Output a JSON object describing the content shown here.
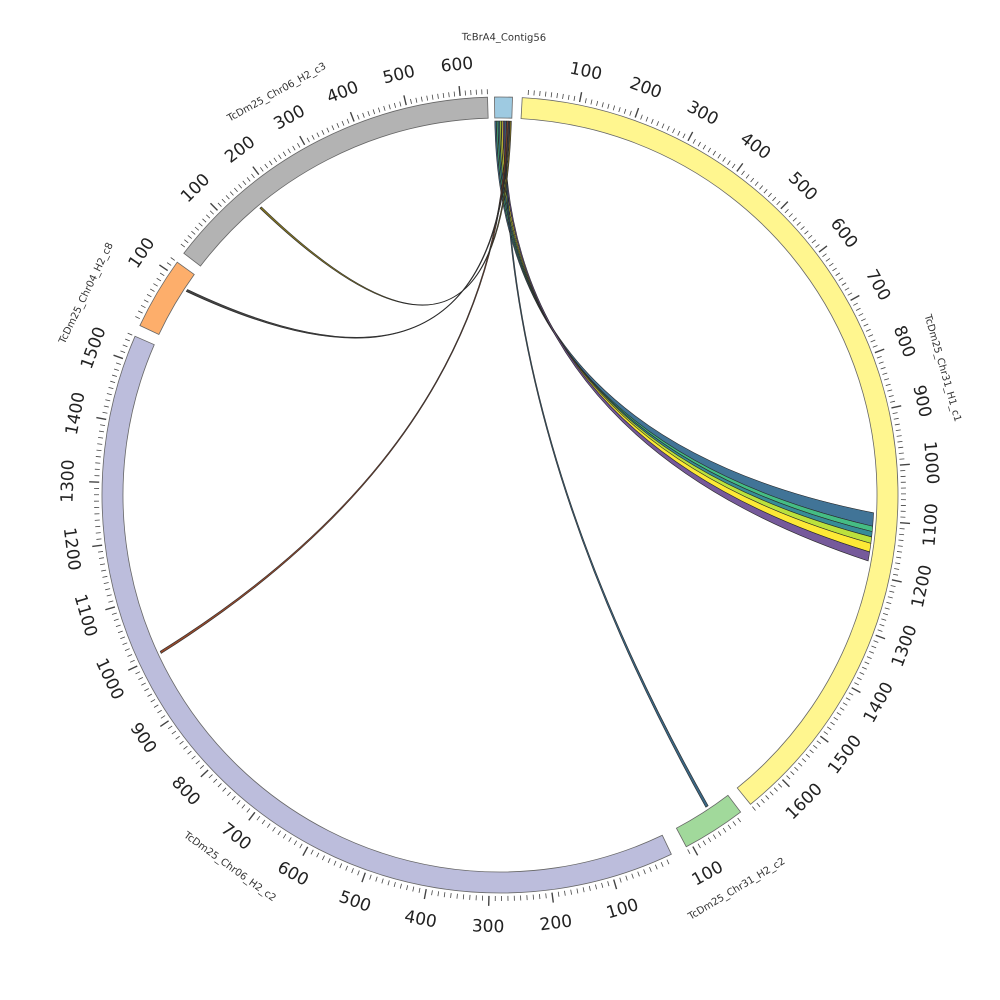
{
  "chart_data": {
    "type": "chord",
    "segments": [
      {
        "name": "TcBrA4_Contig56",
        "length": 15,
        "color": "#9ecae1",
        "tick_labels": []
      },
      {
        "name": "TcDm25_Chr31_H1_c1",
        "length": 1670,
        "color": "#fff68f",
        "tick_labels": [
          "100",
          "200",
          "300",
          "400",
          "500",
          "600",
          "700",
          "800",
          "900",
          "1000",
          "1100",
          "1200",
          "1300",
          "1400",
          "1500",
          "1600"
        ]
      },
      {
        "name": "TcDm25_Chr31_H2_c2",
        "length": 110,
        "color": "#a1d99b",
        "tick_labels": [
          "100"
        ]
      },
      {
        "name": "TcDm25_Chr06_H2_c2",
        "length": 1540,
        "color": "#bcbddc",
        "tick_labels": [
          "100",
          "200",
          "300",
          "400",
          "500",
          "600",
          "700",
          "800",
          "900",
          "1000",
          "1100",
          "1200",
          "1300",
          "1400",
          "1500"
        ]
      },
      {
        "name": "TcDm25_Chr04_H2_c8",
        "length": 120,
        "color": "#fdae6b",
        "tick_labels": [
          "100"
        ]
      },
      {
        "name": "TcDm25_Chr06_H2_c3",
        "length": 650,
        "color": "#b3b3b3",
        "tick_labels": [
          "100",
          "200",
          "300",
          "400",
          "500",
          "600"
        ]
      }
    ],
    "links": [
      {
        "source": "TcBrA4_Contig56",
        "target": "TcDm25_Chr31_H1_c1",
        "target_range": [
          1085,
          1110
        ],
        "color": "#31688e"
      },
      {
        "source": "TcBrA4_Contig56",
        "target": "TcDm25_Chr31_H1_c1",
        "target_range": [
          1110,
          1120
        ],
        "color": "#35b779"
      },
      {
        "source": "TcBrA4_Contig56",
        "target": "TcDm25_Chr31_H1_c1",
        "target_range": [
          1120,
          1130
        ],
        "color": "#26828e"
      },
      {
        "source": "TcBrA4_Contig56",
        "target": "TcDm25_Chr31_H1_c1",
        "target_range": [
          1130,
          1142
        ],
        "color": "#b5de2b"
      },
      {
        "source": "TcBrA4_Contig56",
        "target": "TcDm25_Chr31_H1_c1",
        "target_range": [
          1142,
          1158
        ],
        "color": "#fde725"
      },
      {
        "source": "TcBrA4_Contig56",
        "target": "TcDm25_Chr31_H1_c1",
        "target_range": [
          1158,
          1175
        ],
        "color": "#6a4c93"
      },
      {
        "source": "TcBrA4_Contig56",
        "target": "TcDm25_Chr31_H2_c2",
        "target_range": [
          40,
          45
        ],
        "color": "#2a5a7a"
      },
      {
        "source": "TcBrA4_Contig56",
        "target": "TcDm25_Chr06_H2_c2",
        "target_range": [
          1002,
          1006
        ],
        "color": "#8b3a1a"
      },
      {
        "source": "TcBrA4_Contig56",
        "target": "TcDm25_Chr04_H2_c8",
        "target_range": [
          88,
          92
        ],
        "color": "#333333"
      },
      {
        "source": "TcBrA4_Contig56",
        "target": "TcDm25_Chr06_H2_c3",
        "target_range": [
          162,
          166
        ],
        "color": "#7a6a10"
      }
    ]
  }
}
